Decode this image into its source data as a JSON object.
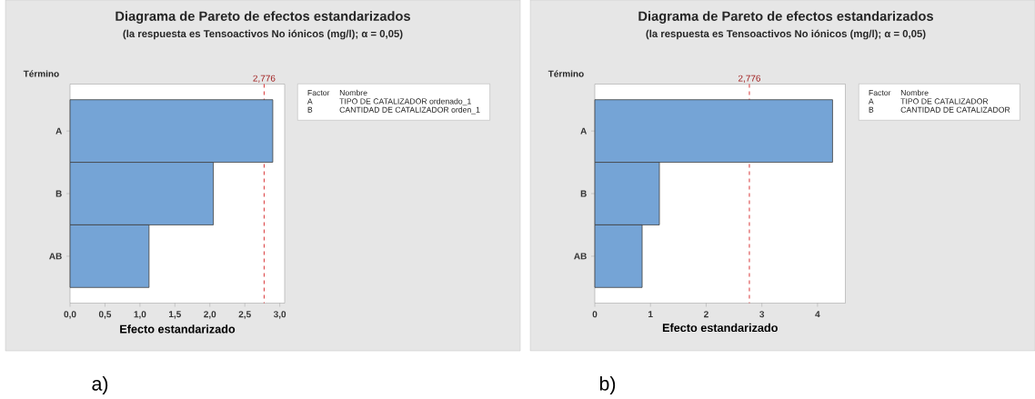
{
  "chart_data": [
    {
      "type": "bar",
      "orientation": "horizontal",
      "title": "Diagrama de Pareto de efectos estandarizados",
      "subtitle": "(la respuesta es Tensoactivos No iónicos (mg/l); α = 0,05)",
      "xlabel": "Efecto estandarizado",
      "ylabel": "Término",
      "categories": [
        "A",
        "B",
        "AB"
      ],
      "values": [
        2.9,
        2.05,
        1.13
      ],
      "color": "#75a4d6",
      "xlim": [
        0,
        3.07
      ],
      "xticks": [
        {
          "value": 0,
          "label": "0,0"
        },
        {
          "value": 0.5,
          "label": "0,5"
        },
        {
          "value": 1,
          "label": "1,0"
        },
        {
          "value": 1.5,
          "label": "1,5"
        },
        {
          "value": 2,
          "label": "2,0"
        },
        {
          "value": 2.5,
          "label": "2,5"
        },
        {
          "value": 3,
          "label": "3,0"
        }
      ],
      "ref_lines": [
        {
          "axis": "x",
          "value": 2.776,
          "label": "2,776",
          "color": "#d62728",
          "line_style": "dashed"
        }
      ],
      "annotations": [
        "Factor",
        "Nombre",
        "A",
        "TIPO DE CATALIZADOR ordenado_1",
        "B",
        "CANTIDAD DE CATALIZADOR orden_1",
        "a)"
      ]
    },
    {
      "type": "bar",
      "orientation": "horizontal",
      "title": "Diagrama de Pareto de efectos estandarizados",
      "subtitle": "(la respuesta es Tensoactivos No iónicos (mg/l); α = 0,05)",
      "xlabel": "Efecto estandarizado",
      "ylabel": "Término",
      "categories": [
        "A",
        "B",
        "AB"
      ],
      "values": [
        4.27,
        1.16,
        0.85
      ],
      "color": "#75a4d6",
      "xlim": [
        0,
        4.5
      ],
      "xticks": [
        0,
        1,
        2,
        3,
        4
      ],
      "ref_lines": [
        {
          "axis": "x",
          "value": 2.776,
          "label": "2,776",
          "color": "#d62728",
          "line_style": "dashed"
        }
      ],
      "annotations": [
        "Factor",
        "Nombre",
        "A",
        "TIPO DE CATALIZADOR",
        "B",
        "CANTIDAD DE CATALIZADOR",
        "b)"
      ]
    }
  ]
}
